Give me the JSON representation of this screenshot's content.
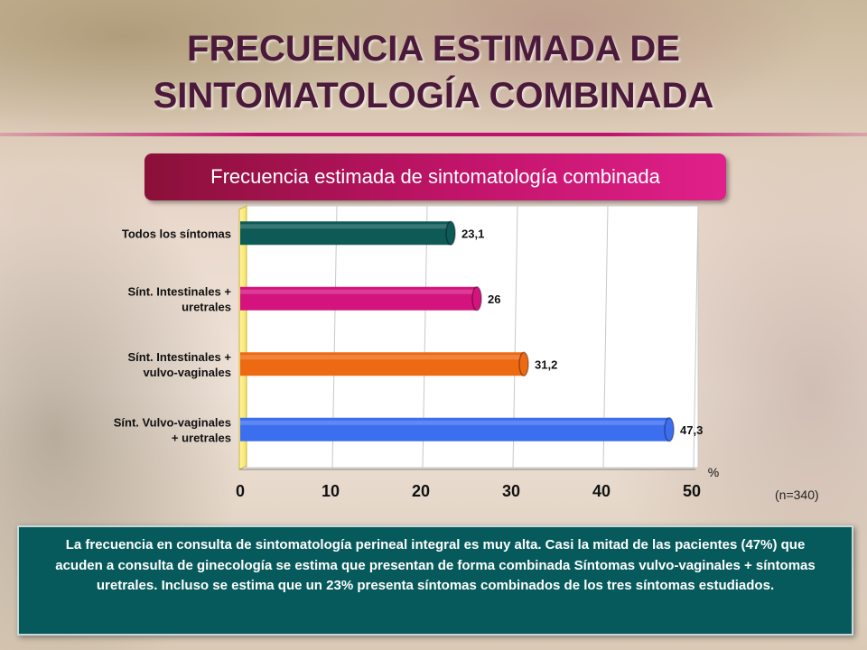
{
  "title_lines": [
    "FRECUENCIA ESTIMADA DE",
    "SINTOMATOLOGÍA COMBINADA"
  ],
  "subtitle": "Frecuencia estimada de sintomatología combinada",
  "sample_note": "(n=340)",
  "footnote": "La frecuencia en consulta de sintomatología perineal integral es muy alta. Casi la mitad de las pacientes (47%) que acuden a consulta de ginecología se estima que presentan de forma combinada Síntomas vulvo-vaginales + síntomas uretrales. Incluso se estima que un 23% presenta síntomas combinados de los tres síntomas estudiados.",
  "chart_data": {
    "type": "bar",
    "orientation": "horizontal",
    "categories": [
      [
        "Todos los síntomas"
      ],
      [
        "Sínt. Intestinales +",
        "uretrales"
      ],
      [
        "Sínt. Intestinales +",
        "vulvo-vaginales"
      ],
      [
        "Sínt. Vulvo-vaginales",
        "+ uretrales"
      ]
    ],
    "values": [
      23.1,
      26,
      31.2,
      47.3
    ],
    "value_labels": [
      "23,1",
      "26",
      "31,2",
      "47,3"
    ],
    "colors": [
      "#0e5a57",
      "#d4137e",
      "#ee6a12",
      "#3c6ff0"
    ],
    "xlabel": "%",
    "xlim": [
      0,
      50
    ],
    "xticks": [
      0,
      10,
      20,
      30,
      40,
      50
    ],
    "grid": true
  }
}
